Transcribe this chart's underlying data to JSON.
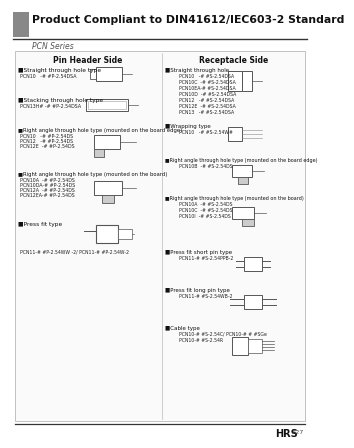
{
  "title": "Product Compliant to DIN41612/IEC603-2 Standard",
  "series": "PCN Series",
  "bg_color": "#f0f0f0",
  "title_color": "#000000",
  "pin_header_title": "Pin Header Side",
  "receptacle_title": "Receptacle Side",
  "footer_brand": "HRS",
  "footer_page": "A27",
  "pin_sections": [
    {
      "label": "Straight through hole type",
      "parts": [
        "PCN10   -# #P-2.54DSA"
      ]
    },
    {
      "label": "Stacking through hole type",
      "parts": [
        "PCN13H# -# #P-2.54DSA"
      ]
    },
    {
      "label": "Right angle through hole type (mounted on the board edge)",
      "parts": [
        "PCN10   -# #P-2.54DS",
        "PCN12   -# #P-2.54DS",
        "PCN12E  -# #P-2.54DS"
      ]
    },
    {
      "label": "Right angle through hole type (mounted on the board)",
      "parts": [
        "PCN10A  -# #P-2.54DS",
        "PCN10DA-# #P-2.54DS",
        "PCN12A  -# #P-2.54DS",
        "PCN12EA-# #P-2.54DS"
      ]
    },
    {
      "label": "Press fit type",
      "parts": [
        "PCN11-# #P-2.54WW -2/ PCN11-# #P-2.54W-2"
      ]
    }
  ],
  "receptacle_sections": [
    {
      "label": "Straight through hole",
      "parts": [
        "PCN10   -# #S-2.54DSA",
        "PCN10C  -# #S-2.54DSA",
        "PCN10EA-# #S-2.54DSA",
        "PCN10D  -# #S-2.54DSA",
        "PCN12   -# #S-2.54DSA",
        "PCN12E  -# #S-2.54DSA",
        "PCN13   -# #S-2.54DSA"
      ]
    },
    {
      "label": "Wrapping type",
      "parts": [
        "PCN10   -# #S-2.54W#"
      ]
    },
    {
      "label": "Right angle through hole type (mounted on the board edge)",
      "parts": [
        "PCN10B  -# #S-2.54DS"
      ]
    },
    {
      "label": "Right angle through hole type (mounted on the board)",
      "parts": [
        "PCN10A  -# #S-2.54DS",
        "PCN10C  -# #S-2.54DS",
        "PCN10I  -# #S-2.54DS"
      ]
    },
    {
      "label": "Press fit short pin type",
      "parts": [
        "PCN11-# #S-2.54PPB-2"
      ]
    },
    {
      "label": "Press fit long pin type",
      "parts": [
        "PCN11-# #S-2.54WB-2"
      ]
    },
    {
      "label": "Cable type",
      "parts": [
        "PCN10-# #S-2.54C/ PCN10-# # #SGe",
        "PCN10-# #S-2.54R"
      ]
    }
  ]
}
